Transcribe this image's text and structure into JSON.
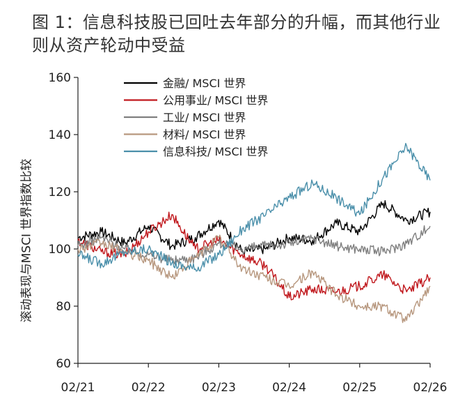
{
  "chart_data": {
    "type": "line",
    "title": "图 1：信息科技股已回吐去年部分的升幅，而其他行业则从资产轮动中受益",
    "ylabel": "滚动表现与MSCI 世界指数比较",
    "xlabel": "",
    "ylim": [
      60,
      160
    ],
    "yticks": [
      "60",
      "80",
      "100",
      "120",
      "140",
      "160"
    ],
    "x_tick_labels": [
      "02/21",
      "02/22",
      "02/23",
      "02/24",
      "02/25",
      "02/26"
    ],
    "x": [
      "02/21",
      "06/21",
      "10/21",
      "02/22",
      "06/22",
      "10/22",
      "02/23",
      "06/23",
      "10/23",
      "02/24",
      "06/24",
      "10/24",
      "02/25",
      "06/25",
      "10/25",
      "01/26"
    ],
    "grid": false,
    "legend_position": "top-left",
    "series": [
      {
        "name": "金融/ MSCI 世界",
        "color": "#000000",
        "values": [
          104,
          106,
          102,
          108,
          101,
          104,
          110,
          99,
          100,
          104,
          103,
          109,
          106,
          116,
          110,
          113
        ]
      },
      {
        "name": "公用事业/ MSCI 世界",
        "color": "#c0171c",
        "values": [
          103,
          99,
          98,
          106,
          112,
          100,
          103,
          98,
          94,
          83,
          86,
          85,
          87,
          91,
          85,
          90
        ]
      },
      {
        "name": "工业/ MSCI 世界",
        "color": "#7f7f7f",
        "values": [
          101,
          104,
          100,
          98,
          96,
          97,
          102,
          100,
          101,
          102,
          104,
          101,
          100,
          99,
          102,
          108
        ]
      },
      {
        "name": "材料/ MSCI 世界",
        "color": "#b7977e",
        "values": [
          100,
          102,
          99,
          96,
          90,
          97,
          104,
          93,
          90,
          87,
          92,
          84,
          80,
          80,
          75,
          87
        ]
      },
      {
        "name": "信息科技/ MSCI 世界",
        "color": "#4a8faa",
        "values": [
          98,
          95,
          99,
          100,
          95,
          93,
          98,
          107,
          112,
          118,
          123,
          118,
          112,
          125,
          136,
          124
        ]
      }
    ]
  }
}
